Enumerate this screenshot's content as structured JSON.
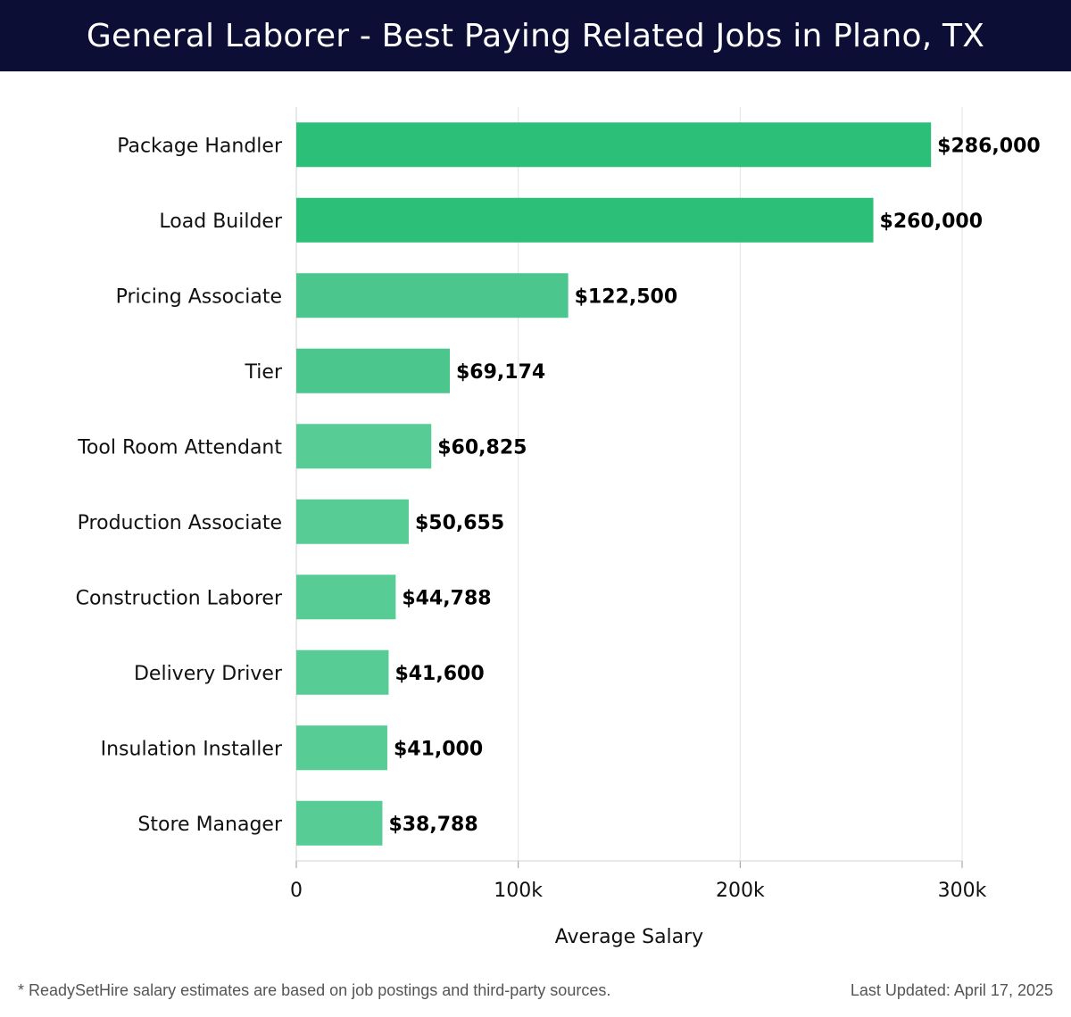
{
  "title": "General Laborer - Best Paying Related Jobs in Plano, TX",
  "footer": {
    "note": "* ReadySetHire salary estimates are based on job postings and third-party sources.",
    "updated": "Last Updated: April 17, 2025"
  },
  "colors": {
    "header_bg": "#0c0e36",
    "bar_top": "#2bbf77",
    "bar_mid": "#4bc78d",
    "bar_low": "#57cd95",
    "grid": "#e3e3e3"
  },
  "chart_data": {
    "type": "bar",
    "orientation": "horizontal",
    "categories": [
      "Package Handler",
      "Load Builder",
      "Pricing Associate",
      "Tier",
      "Tool Room Attendant",
      "Production Associate",
      "Construction Laborer",
      "Delivery Driver",
      "Insulation Installer",
      "Store Manager"
    ],
    "values": [
      286000,
      260000,
      122500,
      69174,
      60825,
      50655,
      44788,
      41600,
      41000,
      38788
    ],
    "value_labels": [
      "$286,000",
      "$260,000",
      "$122,500",
      "$69,174",
      "$60,825",
      "$50,655",
      "$44,788",
      "$41,600",
      "$41,000",
      "$38,788"
    ],
    "xlabel": "Average Salary",
    "ylabel": "",
    "xlim": [
      0,
      300000
    ],
    "xticks": [
      0,
      100000,
      200000,
      300000
    ],
    "xtick_labels": [
      "0",
      "100k",
      "200k",
      "300k"
    ],
    "grid": "vertical"
  }
}
